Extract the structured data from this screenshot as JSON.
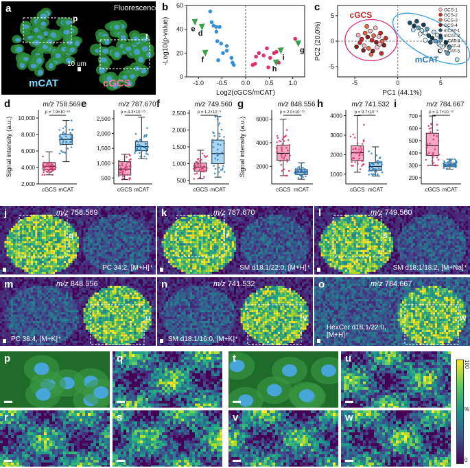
{
  "panel_a": {
    "label": "a",
    "fluorescence": "Fluorescence",
    "roi_p": "p",
    "roi_t": "t",
    "scalebar": "10 um",
    "left_group": "mCAT",
    "right_group": "cGCS",
    "colors": {
      "mCAT": "#7fd8f5",
      "cGCS": "#f07aa0"
    }
  },
  "panel_b": {
    "label": "b",
    "chart_data": {
      "type": "scatter",
      "xlabel": "Log2(cGCS/mCAT)",
      "ylabel": "-Log10(p-value)",
      "xlim": [
        -1.25,
        1.25
      ],
      "ylim": [
        0,
        60
      ],
      "xticks": [
        -1.0,
        -0.5,
        0.0,
        0.5,
        1.0
      ],
      "yticks": [
        0,
        20,
        40,
        60
      ],
      "series": [
        {
          "color": "#3a8fd0",
          "points": [
            [
              -0.75,
              55
            ],
            [
              -0.72,
              46
            ],
            [
              -0.68,
              43
            ],
            [
              -0.62,
              42
            ],
            [
              -0.55,
              42
            ],
            [
              -0.62,
              38
            ],
            [
              -0.6,
              30
            ],
            [
              -0.52,
              28
            ],
            [
              -0.4,
              26
            ],
            [
              -0.4,
              22
            ],
            [
              -0.48,
              20
            ],
            [
              -0.3,
              16
            ],
            [
              -0.28,
              12
            ],
            [
              -0.25,
              10
            ],
            [
              -0.58,
              14
            ]
          ]
        },
        {
          "color": "#e0306a",
          "points": [
            [
              0.15,
              10
            ],
            [
              0.22,
              17
            ],
            [
              0.28,
              20
            ],
            [
              0.38,
              18
            ],
            [
              0.45,
              24
            ],
            [
              0.52,
              16
            ],
            [
              0.6,
              20
            ],
            [
              0.65,
              21
            ],
            [
              0.7,
              12
            ],
            [
              1.05,
              32
            ],
            [
              0.48,
              8
            ],
            [
              0.2,
              11
            ]
          ]
        }
      ],
      "highlighted": [
        {
          "label": "e",
          "x": -1.07,
          "y": 46
        },
        {
          "label": "d",
          "x": -0.92,
          "y": 42
        },
        {
          "label": "f",
          "x": -0.85,
          "y": 20
        },
        {
          "label": "h",
          "x": 0.65,
          "y": 12
        },
        {
          "label": "i",
          "x": 0.75,
          "y": 22
        },
        {
          "label": "g",
          "x": 1.12,
          "y": 28
        }
      ]
    }
  },
  "panel_c": {
    "label": "c",
    "chart_data": {
      "type": "scatter",
      "xlabel": "PC1 (44.1%)",
      "ylabel": "PC2 (20.0%)",
      "xlim": [
        -7,
        8
      ],
      "ylim": [
        -7,
        7
      ],
      "xticks": [
        -5,
        0,
        5
      ],
      "yticks": [
        -5,
        0,
        5
      ],
      "group_labels": [
        "cGCS",
        "mCAT"
      ],
      "legend": [
        "GCS-1",
        "GCS-2",
        "GCS-3",
        "GCS-4",
        "mCAT-1",
        "mCAT-2",
        "mCAT-3",
        "mCAT-4",
        "mCAT-5"
      ],
      "legend_colors": [
        "#f6c0c6",
        "#c92a2a",
        "#e9664f",
        "#8e1b1b",
        "#1d4f6b",
        "#0f3a55",
        "#5aa1c4",
        "#bfe3f2",
        "#e8f4fa"
      ],
      "series": [
        {
          "name": "cGCS",
          "color": "#d6544a",
          "points": [
            [
              -4.6,
              1.2
            ],
            [
              -4.2,
              0.4
            ],
            [
              -3.8,
              1.6
            ],
            [
              -3.5,
              0.8
            ],
            [
              -3.2,
              2.0
            ],
            [
              -3.0,
              0.2
            ],
            [
              -2.8,
              1.1
            ],
            [
              -2.5,
              -0.2
            ],
            [
              -2.2,
              0.9
            ],
            [
              -2.0,
              1.6
            ],
            [
              -1.8,
              0.0
            ],
            [
              -1.6,
              -0.8
            ],
            [
              -3.9,
              -0.9
            ],
            [
              -4.4,
              -0.3
            ],
            [
              -3.4,
              -1.4
            ],
            [
              -2.9,
              -1.9
            ],
            [
              -2.4,
              -1.2
            ],
            [
              -1.9,
              -2.4
            ],
            [
              -3.1,
              -2.6
            ],
            [
              -4.0,
              -1.8
            ],
            [
              -2.6,
              2.6
            ],
            [
              -1.4,
              0.6
            ],
            [
              -3.6,
              2.9
            ],
            [
              -4.8,
              -1.1
            ],
            [
              -2.1,
              -0.6
            ]
          ]
        },
        {
          "name": "mCAT",
          "color": "#3b86b5",
          "points": [
            [
              1.4,
              3.6
            ],
            [
              1.9,
              3.0
            ],
            [
              2.4,
              2.6
            ],
            [
              2.8,
              2.1
            ],
            [
              3.2,
              1.6
            ],
            [
              3.6,
              1.1
            ],
            [
              4.0,
              0.6
            ],
            [
              4.4,
              0.0
            ],
            [
              4.8,
              -0.6
            ],
            [
              5.2,
              -1.1
            ],
            [
              2.2,
              3.9
            ],
            [
              3.0,
              3.2
            ],
            [
              3.4,
              2.4
            ],
            [
              4.2,
              1.8
            ],
            [
              4.6,
              1.2
            ],
            [
              5.0,
              0.6
            ],
            [
              5.6,
              -0.3
            ],
            [
              6.0,
              -1.2
            ],
            [
              1.8,
              2.2
            ],
            [
              2.6,
              1.4
            ],
            [
              3.8,
              -0.2
            ],
            [
              4.9,
              -1.9
            ],
            [
              5.8,
              -2.4
            ],
            [
              6.9,
              -3.6
            ],
            [
              3.2,
              0.2
            ]
          ]
        }
      ]
    }
  },
  "box_panels": [
    {
      "label": "d",
      "mz": "758.569",
      "p": "p = 7.9×10⁻²⁴",
      "ylim": [
        2000,
        11000
      ],
      "yticks": [
        2000,
        4000,
        6000,
        8000,
        10000
      ],
      "ytick_labels": [
        "2,000",
        "4,000",
        "6,000",
        "8,000",
        "10,000"
      ],
      "ylabel": "Signal intensity (a.u.)",
      "groups": [
        "cGCS",
        "mCAT"
      ],
      "chart_data": {
        "type": "box",
        "cGCS": {
          "q1": 3700,
          "median": 4150,
          "q3": 4600,
          "min": 3100,
          "max": 5900
        },
        "mCAT": {
          "q1": 6800,
          "median": 7400,
          "q3": 8000,
          "min": 4700,
          "max": 9700
        }
      }
    },
    {
      "label": "e",
      "mz": "787.670",
      "p": "p = 4.3×10⁻²⁵",
      "ylim": [
        300,
        2800
      ],
      "yticks": [
        500,
        1000,
        1500,
        2000,
        2500
      ],
      "ytick_labels": [
        "500",
        "1,000",
        "1,500",
        "2,000",
        "2,500"
      ],
      "ylabel": "",
      "groups": [
        "cGCS",
        "mCAT"
      ],
      "chart_data": {
        "type": "box",
        "cGCS": {
          "q1": 600,
          "median": 800,
          "q3": 1050,
          "min": 450,
          "max": 1300
        },
        "mCAT": {
          "q1": 1420,
          "median": 1560,
          "q3": 1720,
          "min": 1150,
          "max": 2550
        }
      }
    },
    {
      "label": "f",
      "mz": "749.560",
      "p": "p = 1.2×10⁻⁸",
      "ylim": [
        400,
        2600
      ],
      "yticks": [
        500,
        1000,
        1500,
        2000,
        2500
      ],
      "ytick_labels": [
        "500",
        "1,000",
        "1,500",
        "2,000",
        "2,500"
      ],
      "ylabel": "",
      "groups": [
        "cGCS",
        "mCAT"
      ],
      "chart_data": {
        "type": "box",
        "cGCS": {
          "q1": 780,
          "median": 900,
          "q3": 1020,
          "min": 550,
          "max": 1400
        },
        "mCAT": {
          "q1": 1000,
          "median": 1300,
          "q3": 1700,
          "min": 600,
          "max": 2400
        }
      }
    },
    {
      "label": "g",
      "mz": "848.556",
      "p": "p = 2.0×10⁻¹⁵",
      "ylim": [
        500,
        6800
      ],
      "yticks": [
        2000,
        4000,
        6000
      ],
      "ytick_labels": [
        "2000",
        "4000",
        "6000"
      ],
      "ylabel": "Signal intensity (a.u.)",
      "groups": [
        "cGCS",
        "mCAT"
      ],
      "chart_data": {
        "type": "box",
        "cGCS": {
          "q1": 2500,
          "median": 3100,
          "q3": 3800,
          "min": 1200,
          "max": 6000
        },
        "mCAT": {
          "q1": 1300,
          "median": 1500,
          "q3": 1700,
          "min": 900,
          "max": 2300
        }
      }
    },
    {
      "label": "h",
      "mz": "741.532",
      "p": "p = 9.7×10⁻⁸",
      "ylim": [
        500,
        4300
      ],
      "yticks": [
        1000,
        2000,
        3000,
        4000
      ],
      "ytick_labels": [
        "1000",
        "2000",
        "3000",
        "4000"
      ],
      "ylabel": "",
      "groups": [
        "cGCS",
        "mCAT"
      ],
      "chart_data": {
        "type": "box",
        "cGCS": {
          "q1": 1700,
          "median": 2100,
          "q3": 2450,
          "min": 1100,
          "max": 4000
        },
        "mCAT": {
          "q1": 1200,
          "median": 1400,
          "q3": 1600,
          "min": 900,
          "max": 2400
        }
      }
    },
    {
      "label": "i",
      "mz": "784.667",
      "p": "p = 1.7×10⁻¹²",
      "ylim": [
        150,
        750
      ],
      "yticks": [
        200,
        300,
        400,
        500,
        600,
        700
      ],
      "ytick_labels": [
        "200",
        "300",
        "400",
        "500",
        "600",
        "700"
      ],
      "ylabel": "",
      "groups": [
        "cGCS",
        "mCAT"
      ],
      "chart_data": {
        "type": "box",
        "cGCS": {
          "q1": 380,
          "median": 460,
          "q3": 560,
          "min": 300,
          "max": 700
        },
        "mCAT": {
          "q1": 290,
          "median": 305,
          "q3": 320,
          "min": 270,
          "max": 350
        }
      }
    }
  ],
  "ms_images": [
    {
      "label": "j",
      "mz": "758.569",
      "roi": "q",
      "ion": "PC 34:2, [M+H]⁺",
      "mode": "left"
    },
    {
      "label": "k",
      "mz": "787.670",
      "roi": "r",
      "ion": "SM d18:1/22:0, [M+H]⁺",
      "mode": "left"
    },
    {
      "label": "l",
      "mz": "749.560",
      "roi": "s",
      "ion": "SM d18:1/18:2, [M+Na]⁺",
      "mode": "left"
    },
    {
      "label": "m",
      "mz": "848.556",
      "roi": "u",
      "ion": "PC 38:4, [M+K]⁺",
      "mode": "right"
    },
    {
      "label": "n",
      "mz": "741.532",
      "roi": "v",
      "ion": "SM d18:1/16:0, [M+K]⁺",
      "mode": "right"
    },
    {
      "label": "o",
      "mz": "784.667",
      "roi": "w",
      "ion": "HexCer d18:1/22:0, [M+H]⁺",
      "mode": "right"
    }
  ],
  "zoom_panels": [
    {
      "label": "p",
      "kind": "fluor"
    },
    {
      "label": "q",
      "kind": "ms"
    },
    {
      "label": "t",
      "kind": "fluor"
    },
    {
      "label": "u",
      "kind": "ms"
    },
    {
      "label": "r",
      "kind": "ms"
    },
    {
      "label": "s",
      "kind": "ms"
    },
    {
      "label": "v",
      "kind": "ms"
    },
    {
      "label": "w",
      "kind": "ms"
    }
  ],
  "colorbar": {
    "max": "100",
    "min": "0",
    "unit": "%"
  },
  "mz_prefix": "m/z"
}
